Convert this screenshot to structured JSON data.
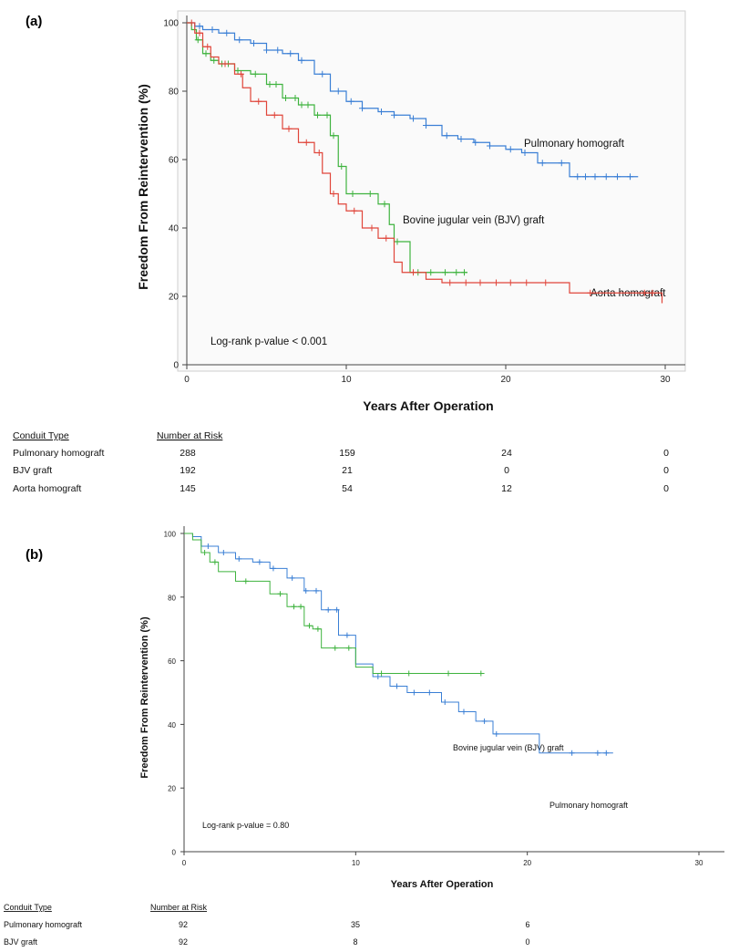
{
  "chart_data": [
    {
      "type": "line",
      "panel_label": "(a)",
      "title": "",
      "xlabel": "Years After Operation",
      "ylabel": "Freedom From Reintervention (%)",
      "xlim": [
        0,
        30
      ],
      "ylim": [
        0,
        100
      ],
      "xticks": [
        0,
        10,
        20,
        30
      ],
      "yticks": [
        0,
        20,
        40,
        60,
        80,
        100
      ],
      "grid": false,
      "step": true,
      "series": [
        {
          "name": "Pulmonary homograft",
          "color": "#3a7fd5",
          "x": [
            0,
            0.5,
            1,
            2,
            3,
            4,
            5,
            6,
            7,
            8,
            9,
            10,
            11,
            12,
            13,
            14,
            15,
            16,
            17,
            18,
            19,
            20,
            21,
            22,
            23,
            24,
            28.3
          ],
          "y": [
            100,
            99,
            98,
            97,
            95,
            94,
            92,
            91,
            89,
            85,
            80,
            77,
            75,
            74,
            73,
            72,
            70,
            67,
            66,
            65,
            64,
            63,
            62,
            59,
            59,
            55,
            55
          ],
          "censor": [
            0.8,
            1.6,
            2.5,
            3.3,
            4.2,
            5,
            5.7,
            6.5,
            7.2,
            8.5,
            9.5,
            10.3,
            11,
            12.2,
            13,
            14.2,
            15,
            16.3,
            17.2,
            18.1,
            19,
            20.3,
            21.2,
            22.3,
            23.5,
            24.5,
            25,
            25.6,
            26.3,
            27,
            27.8
          ]
        },
        {
          "name": "Bovine jugular vein (BJV) graft",
          "color": "#3fb33f",
          "x": [
            0,
            0.3,
            0.6,
            1,
            1.5,
            2,
            3,
            4,
            5,
            6,
            7,
            8,
            9,
            9.5,
            10,
            11,
            12,
            12.7,
            13,
            13.5,
            14,
            17.6
          ],
          "y": [
            100,
            98,
            95,
            91,
            89,
            88,
            86,
            85,
            82,
            78,
            76,
            73,
            67,
            58,
            50,
            50,
            47,
            41,
            36,
            36,
            27,
            27
          ],
          "censor": [
            0.7,
            1.2,
            1.7,
            2.2,
            2.6,
            3.2,
            4.3,
            5.2,
            5.6,
            6.2,
            6.8,
            7.2,
            7.6,
            8.2,
            8.8,
            9.2,
            9.7,
            10.4,
            11.5,
            12.4,
            13.2,
            14.5,
            15.3,
            16.2,
            16.9,
            17.4
          ]
        },
        {
          "name": "Aorta homograft",
          "color": "#e0453a",
          "x": [
            0,
            0.5,
            1,
            1.5,
            2,
            3,
            3.5,
            4,
            5,
            6,
            7,
            8,
            8.5,
            9,
            9.5,
            10,
            11,
            12,
            13,
            13.5,
            15,
            16,
            23.5,
            24,
            29.8
          ],
          "y": [
            100,
            97,
            93,
            90,
            88,
            85,
            81,
            77,
            73,
            69,
            65,
            62,
            56,
            50,
            47,
            45,
            40,
            37,
            30,
            27,
            25,
            24,
            24,
            21,
            18
          ],
          "censor": [
            0.3,
            0.8,
            1.3,
            2.4,
            3.4,
            4.5,
            5.5,
            6.4,
            7.5,
            8.3,
            9.2,
            10.5,
            11.6,
            12.5,
            14.2,
            16.5,
            17.5,
            18.4,
            19.4,
            20.3,
            21.3,
            22.5,
            25.3,
            28.7,
            29.2
          ]
        }
      ],
      "annotations": [
        {
          "text": "Pulmonary homograft",
          "series": "Pulmonary homograft"
        },
        {
          "text": "Bovine jugular vein (BJV) graft",
          "series": "Bovine jugular vein (BJV) graft"
        },
        {
          "text": "Aorta homograft",
          "series": "Aorta homograft"
        },
        {
          "text": "Log-rank p-value < 0.001",
          "series": ""
        }
      ],
      "risk_table": {
        "col1_header": "Conduit Type",
        "col2_header": "Number at Risk",
        "rows": [
          {
            "label": "Pulmonary homograft",
            "values": [
              "288",
              "159",
              "24",
              "0"
            ]
          },
          {
            "label": "BJV graft",
            "values": [
              "192",
              "21",
              "0",
              "0"
            ]
          },
          {
            "label": "Aorta homograft",
            "values": [
              "145",
              "54",
              "12",
              "0"
            ]
          }
        ]
      }
    },
    {
      "type": "line",
      "panel_label": "(b)",
      "title": "",
      "xlabel": "Years After Operation",
      "ylabel": "Freedom From Reintervention (%)",
      "xlim": [
        0,
        30
      ],
      "ylim": [
        0,
        100
      ],
      "xticks": [
        0,
        10,
        20,
        30
      ],
      "yticks": [
        0,
        20,
        40,
        60,
        80,
        100
      ],
      "grid": false,
      "step": true,
      "series": [
        {
          "name": "Pulmonary homograft",
          "color": "#3a7fd5",
          "x": [
            0,
            0.5,
            1,
            2,
            3,
            4,
            5,
            6,
            7,
            8,
            9,
            10,
            11,
            12,
            13,
            15,
            16,
            17,
            18,
            20.7,
            25
          ],
          "y": [
            100,
            99,
            96,
            94,
            92,
            91,
            89,
            86,
            82,
            76,
            68,
            59,
            55,
            52,
            50,
            47,
            44,
            41,
            37,
            31,
            31
          ],
          "censor": [
            1.4,
            2.3,
            3.2,
            4.4,
            5.2,
            6.3,
            7.1,
            7.7,
            8.4,
            8.9,
            9.5,
            11.3,
            12.4,
            13.4,
            14.3,
            15.2,
            16.3,
            17.5,
            18.2,
            22.6,
            24.1,
            24.6
          ]
        },
        {
          "name": "Bovine jugular vein (BJV) graft",
          "color": "#3fb33f",
          "x": [
            0,
            0.5,
            1,
            1.5,
            2,
            3,
            4,
            5,
            6,
            7,
            7.5,
            8,
            10,
            11,
            17.5
          ],
          "y": [
            100,
            98,
            94,
            91,
            88,
            85,
            85,
            81,
            77,
            71,
            70,
            64,
            58,
            56,
            56
          ],
          "censor": [
            1.2,
            1.8,
            3.6,
            5.6,
            6.4,
            6.8,
            7.3,
            7.8,
            8.8,
            9.6,
            11.5,
            13.1,
            15.4,
            17.3
          ]
        }
      ],
      "annotations": [
        {
          "text": "Bovine jugular vein (BJV) graft",
          "series": "Bovine jugular vein (BJV) graft"
        },
        {
          "text": "Pulmonary homograft",
          "series": "Pulmonary homograft"
        },
        {
          "text": "Log-rank p-value = 0.80",
          "series": ""
        }
      ],
      "risk_table": {
        "col1_header": "Conduit Type",
        "col2_header": "Number at Risk",
        "rows": [
          {
            "label": "Pulmonary homograft",
            "values": [
              "92",
              "35",
              "6"
            ]
          },
          {
            "label": "BJV graft",
            "values": [
              "92",
              "8",
              "0"
            ]
          }
        ]
      }
    }
  ]
}
